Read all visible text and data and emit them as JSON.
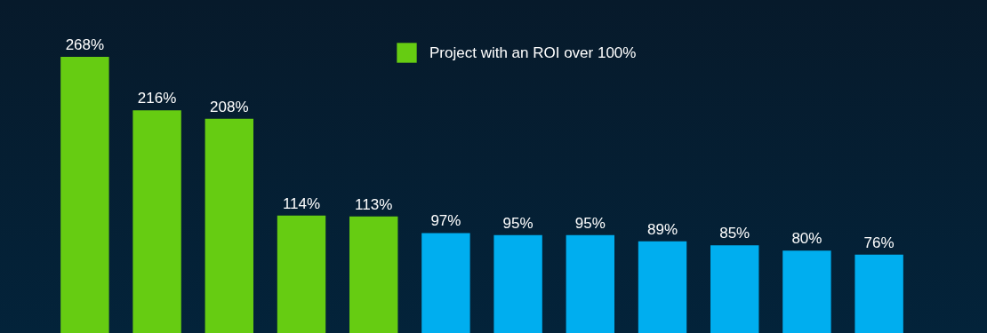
{
  "chart_data": {
    "type": "bar",
    "stacked": true,
    "legend": "top",
    "categories": [
      null,
      null,
      null,
      null,
      null,
      null,
      null,
      null,
      null,
      null,
      null,
      null
    ],
    "series": [
      {
        "name": "Project with an ROI over 100%",
        "color": "#66cc12",
        "values": [
          268,
          216,
          208,
          114,
          113,
          null,
          null,
          null,
          null,
          null,
          null,
          null
        ],
        "value_labels": [
          "268%",
          "216%",
          "208%",
          "114%",
          "113%",
          null,
          null,
          null,
          null,
          null,
          null,
          null
        ]
      },
      {
        "color": "#00aeef",
        "values": [
          null,
          null,
          null,
          null,
          null,
          97,
          95,
          95,
          89,
          85,
          80,
          76
        ],
        "value_labels": [
          null,
          null,
          null,
          null,
          null,
          "97%",
          "95%",
          "95%",
          "89%",
          "85%",
          "80%",
          "76%"
        ]
      }
    ]
  }
}
